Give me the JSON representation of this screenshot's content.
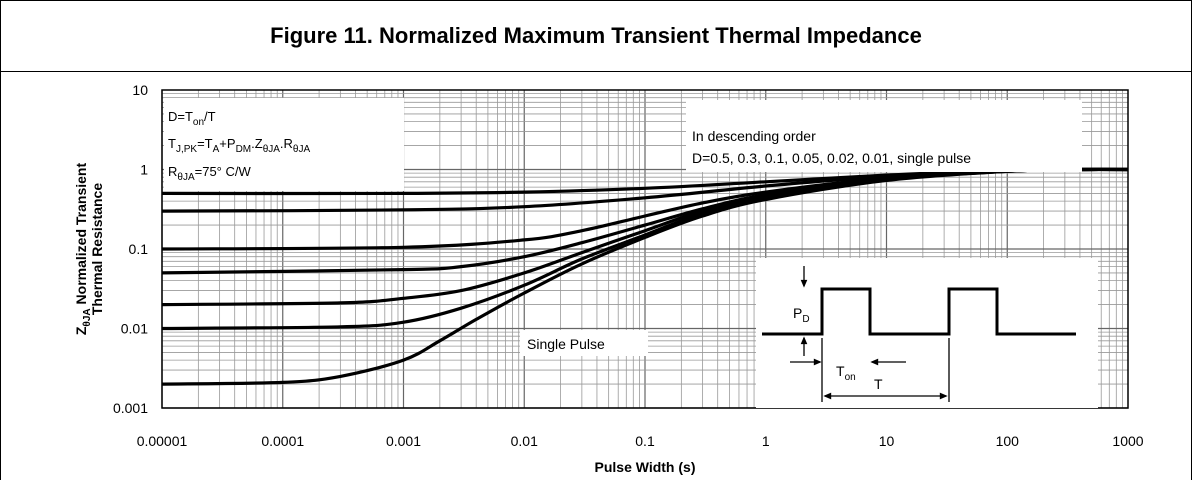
{
  "title": "Figure 11. Normalized Maximum Transient Thermal Impedance",
  "chart_data": {
    "type": "line",
    "xscale": "log",
    "yscale": "log",
    "xlim": [
      1e-05,
      1000
    ],
    "ylim": [
      0.001,
      10
    ],
    "xlabel": "Pulse Width (s)",
    "ylabel_main": "Normalized Transient",
    "ylabel_line2": "Thermal Resistance",
    "ylabel_symbol": "Z",
    "ylabel_symbol_sub": "θJA",
    "x_ticks": [
      "0.00001",
      "0.0001",
      "0.001",
      "0.01",
      "0.1",
      "1",
      "10",
      "100",
      "1000"
    ],
    "y_ticks": [
      "0.001",
      "0.01",
      "0.1",
      "1",
      "10"
    ],
    "grid": true,
    "series": [
      {
        "duty": 0.5,
        "x": [
          1e-05,
          0.001,
          0.01,
          0.1,
          1,
          10,
          100,
          400
        ],
        "y": [
          0.5,
          0.5,
          0.52,
          0.58,
          0.7,
          0.85,
          0.98,
          1.0
        ]
      },
      {
        "duty": 0.3,
        "x": [
          1e-05,
          0.001,
          0.01,
          0.1,
          1,
          10,
          100,
          400
        ],
        "y": [
          0.3,
          0.31,
          0.34,
          0.44,
          0.62,
          0.82,
          0.97,
          1.0
        ]
      },
      {
        "duty": 0.1,
        "x": [
          1e-05,
          0.001,
          0.01,
          0.03,
          0.1,
          0.3,
          1,
          10,
          100,
          400
        ],
        "y": [
          0.1,
          0.105,
          0.13,
          0.17,
          0.26,
          0.38,
          0.52,
          0.78,
          0.96,
          1.0
        ]
      },
      {
        "duty": 0.05,
        "x": [
          1e-05,
          0.001,
          0.003,
          0.01,
          0.03,
          0.1,
          0.3,
          1,
          10,
          100,
          400
        ],
        "y": [
          0.05,
          0.055,
          0.06,
          0.08,
          0.12,
          0.2,
          0.32,
          0.48,
          0.76,
          0.96,
          1.0
        ]
      },
      {
        "duty": 0.02,
        "x": [
          1e-05,
          0.0003,
          0.001,
          0.003,
          0.01,
          0.03,
          0.1,
          0.3,
          1,
          10,
          100,
          400
        ],
        "y": [
          0.02,
          0.021,
          0.024,
          0.03,
          0.05,
          0.09,
          0.17,
          0.3,
          0.45,
          0.75,
          0.95,
          1.0
        ]
      },
      {
        "duty": 0.01,
        "x": [
          1e-05,
          0.0003,
          0.001,
          0.003,
          0.01,
          0.03,
          0.1,
          0.3,
          1,
          10,
          100,
          400
        ],
        "y": [
          0.01,
          0.0105,
          0.012,
          0.018,
          0.035,
          0.075,
          0.15,
          0.28,
          0.43,
          0.74,
          0.95,
          1.0
        ]
      },
      {
        "duty": "single pulse",
        "x": [
          1e-05,
          0.0001,
          0.0003,
          0.001,
          0.002,
          0.004,
          0.01,
          0.03,
          0.1,
          0.3,
          1,
          10,
          100,
          400
        ],
        "y": [
          0.002,
          0.0021,
          0.0025,
          0.004,
          0.007,
          0.013,
          0.028,
          0.065,
          0.14,
          0.26,
          0.42,
          0.73,
          0.95,
          1.0
        ]
      }
    ],
    "annotations": {
      "params_line1_a": "D=T",
      "params_line1_sub": "on",
      "params_line1_b": "/T",
      "params_line2": [
        {
          "t": "T"
        },
        {
          "t": "J,PK",
          "sub": true
        },
        {
          "t": "=T"
        },
        {
          "t": "A",
          "sub": true
        },
        {
          "t": "+P"
        },
        {
          "t": "DM",
          "sub": true
        },
        {
          "t": ".Z"
        },
        {
          "t": "θJA",
          "sub": true
        },
        {
          "t": ".R"
        },
        {
          "t": "θJA",
          "sub": true
        }
      ],
      "params_line3_a": "R",
      "params_line3_sub": "θJA",
      "params_line3_b": "=75°  C/W",
      "order_line1": "In descending order",
      "order_line2": "D=0.5, 0.3, 0.1, 0.05, 0.02, 0.01, single pulse",
      "single_pulse": "Single Pulse",
      "pd_label": "P",
      "pd_sub": "D",
      "ton_label": "T",
      "ton_sub": "on",
      "t_label": "T"
    }
  }
}
